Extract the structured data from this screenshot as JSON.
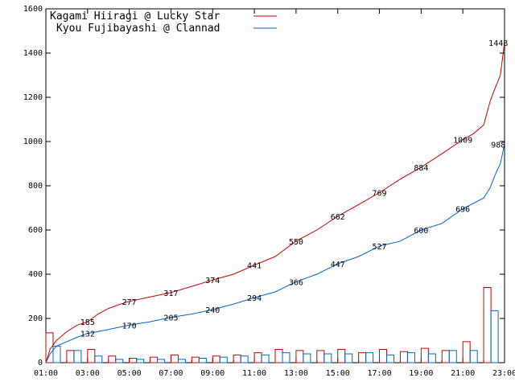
{
  "chart_data": {
    "type": "line",
    "title": "",
    "xlabel": "",
    "ylabel": "",
    "ylim": [
      0,
      1600
    ],
    "xlim_hours": [
      1,
      23
    ],
    "grid": false,
    "legend_position": "top-left",
    "y_ticks": [
      "0",
      "200",
      "400",
      "600",
      "800",
      "1000",
      "1200",
      "1400",
      "1600"
    ],
    "x_ticks": [
      "01:00",
      "03:00",
      "05:00",
      "07:00",
      "09:00",
      "11:00",
      "13:00",
      "15:00",
      "17:00",
      "19:00",
      "21:00",
      "23:00"
    ],
    "series": [
      {
        "name": "Kagami Hiiragi @ Lucky Star",
        "color": "#cc0000",
        "x": [
          1.0,
          1.2,
          1.5,
          2.0,
          2.5,
          3.0,
          3.5,
          4.0,
          4.5,
          5.0,
          6.0,
          7.0,
          8.0,
          9.0,
          10.0,
          11.0,
          12.0,
          13.0,
          14.0,
          15.0,
          16.0,
          17.0,
          18.0,
          19.0,
          20.0,
          21.0,
          21.5,
          22.0,
          22.3,
          22.5,
          22.8,
          23.0
        ],
        "values": [
          0,
          60,
          100,
          140,
          170,
          185,
          220,
          245,
          262,
          277,
          297,
          317,
          345,
          374,
          400,
          441,
          480,
          550,
          600,
          662,
          715,
          769,
          830,
          884,
          945,
          1009,
          1035,
          1075,
          1180,
          1230,
          1300,
          1448
        ]
      },
      {
        "name": "Kyou Fujibayashi @ Clannad",
        "color": "#0066cc",
        "x": [
          1.0,
          1.2,
          1.5,
          2.0,
          2.5,
          3.0,
          4.0,
          5.0,
          6.0,
          7.0,
          8.0,
          9.0,
          10.0,
          11.0,
          12.0,
          13.0,
          14.0,
          15.0,
          16.0,
          17.0,
          18.0,
          19.0,
          20.0,
          21.0,
          21.5,
          22.0,
          22.3,
          22.6,
          22.8,
          23.0
        ],
        "values": [
          0,
          40,
          75,
          95,
          115,
          132,
          150,
          170,
          185,
          205,
          220,
          240,
          265,
          294,
          320,
          366,
          400,
          447,
          480,
          527,
          550,
          600,
          630,
          696,
          720,
          745,
          790,
          860,
          900,
          988
        ]
      }
    ],
    "labels": [
      {
        "series": 0,
        "x": 3.0,
        "value": 185,
        "text": "185"
      },
      {
        "series": 0,
        "x": 5.0,
        "value": 277,
        "text": "277"
      },
      {
        "series": 0,
        "x": 7.0,
        "value": 317,
        "text": "317"
      },
      {
        "series": 0,
        "x": 9.0,
        "value": 374,
        "text": "374"
      },
      {
        "series": 0,
        "x": 11.0,
        "value": 441,
        "text": "441"
      },
      {
        "series": 0,
        "x": 13.0,
        "value": 550,
        "text": "550"
      },
      {
        "series": 0,
        "x": 15.0,
        "value": 662,
        "text": "662"
      },
      {
        "series": 0,
        "x": 17.0,
        "value": 769,
        "text": "769"
      },
      {
        "series": 0,
        "x": 19.0,
        "value": 884,
        "text": "884"
      },
      {
        "series": 0,
        "x": 21.0,
        "value": 1009,
        "text": "1009"
      },
      {
        "series": 0,
        "x": 22.7,
        "value": 1448,
        "text": "1448"
      },
      {
        "series": 1,
        "x": 3.0,
        "value": 132,
        "text": "132"
      },
      {
        "series": 1,
        "x": 5.0,
        "value": 170,
        "text": "170"
      },
      {
        "series": 1,
        "x": 7.0,
        "value": 205,
        "text": "205"
      },
      {
        "series": 1,
        "x": 9.0,
        "value": 240,
        "text": "240"
      },
      {
        "series": 1,
        "x": 11.0,
        "value": 294,
        "text": "294"
      },
      {
        "series": 1,
        "x": 13.0,
        "value": 366,
        "text": "366"
      },
      {
        "series": 1,
        "x": 15.0,
        "value": 447,
        "text": "447"
      },
      {
        "series": 1,
        "x": 17.0,
        "value": 527,
        "text": "527"
      },
      {
        "series": 1,
        "x": 19.0,
        "value": 600,
        "text": "600"
      },
      {
        "series": 1,
        "x": 21.0,
        "value": 696,
        "text": "696"
      },
      {
        "series": 1,
        "x": 22.7,
        "value": 988,
        "text": "988"
      }
    ],
    "hourly_bars": [
      {
        "x": 1.0,
        "values": [
          135,
          75
        ]
      },
      {
        "x": 2.0,
        "values": [
          55,
          55
        ]
      },
      {
        "x": 3.0,
        "values": [
          60,
          30
        ]
      },
      {
        "x": 4.0,
        "values": [
          30,
          15
        ]
      },
      {
        "x": 5.0,
        "values": [
          20,
          15
        ]
      },
      {
        "x": 6.0,
        "values": [
          25,
          15
        ]
      },
      {
        "x": 7.0,
        "values": [
          35,
          15
        ]
      },
      {
        "x": 8.0,
        "values": [
          25,
          20
        ]
      },
      {
        "x": 9.0,
        "values": [
          30,
          25
        ]
      },
      {
        "x": 10.0,
        "values": [
          35,
          30
        ]
      },
      {
        "x": 11.0,
        "values": [
          45,
          35
        ]
      },
      {
        "x": 12.0,
        "values": [
          60,
          45
        ]
      },
      {
        "x": 13.0,
        "values": [
          55,
          40
        ]
      },
      {
        "x": 14.0,
        "values": [
          55,
          40
        ]
      },
      {
        "x": 15.0,
        "values": [
          60,
          40
        ]
      },
      {
        "x": 16.0,
        "values": [
          45,
          45
        ]
      },
      {
        "x": 17.0,
        "values": [
          60,
          35
        ]
      },
      {
        "x": 18.0,
        "values": [
          50,
          45
        ]
      },
      {
        "x": 19.0,
        "values": [
          65,
          40
        ]
      },
      {
        "x": 20.0,
        "values": [
          55,
          55
        ]
      },
      {
        "x": 21.0,
        "values": [
          95,
          55
        ]
      },
      {
        "x": 22.0,
        "values": [
          340,
          235
        ]
      }
    ]
  }
}
